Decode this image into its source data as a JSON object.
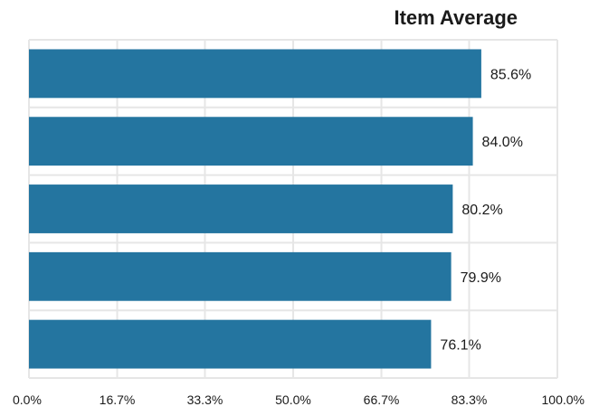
{
  "chart_data": {
    "type": "bar",
    "orientation": "horizontal",
    "title": "Item Average",
    "categories": [
      "",
      "",
      "",
      "",
      ""
    ],
    "values": [
      85.6,
      84.0,
      80.2,
      79.9,
      76.1
    ],
    "data_labels": [
      "85.6%",
      "84.0%",
      "80.2%",
      "79.9%",
      "76.1%"
    ],
    "xlim": [
      0,
      100
    ],
    "x_ticks": [
      0,
      16.7,
      33.3,
      50.0,
      66.7,
      83.3,
      100.0
    ],
    "x_tick_labels": [
      "0.0%",
      "16.7%",
      "33.3%",
      "50.0%",
      "66.7%",
      "83.3%",
      "100.0%"
    ],
    "xlabel": "",
    "ylabel": "",
    "grid": true,
    "legend": "none",
    "bar_color": "#2475a0",
    "grid_color": "#e6e6e6"
  }
}
